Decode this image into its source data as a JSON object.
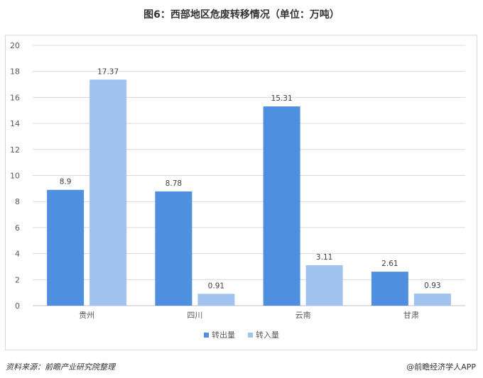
{
  "title": "图6：西部地区危废转移情况（单位：万吨）",
  "chart_data": {
    "type": "bar",
    "categories": [
      "贵州",
      "四川",
      "云南",
      "甘肃"
    ],
    "series": [
      {
        "name": "转出量",
        "values": [
          8.9,
          8.78,
          15.31,
          2.61
        ],
        "color": "#4e8fe0"
      },
      {
        "name": "转入量",
        "values": [
          17.37,
          0.91,
          3.11,
          0.93
        ],
        "color": "#a0c4ef"
      }
    ],
    "value_labels": [
      [
        "8.9",
        "8.78",
        "15.31",
        "2.61"
      ],
      [
        "17.37",
        "0.91",
        "3.11",
        "0.93"
      ]
    ],
    "ylim": [
      0,
      20
    ],
    "yticks": [
      "0",
      "2",
      "4",
      "6",
      "8",
      "10",
      "12",
      "14",
      "16",
      "18",
      "20"
    ],
    "grid": true,
    "legend_position": "bottom"
  },
  "legend": {
    "outflow": "转出量",
    "inflow": "转入量",
    "outflow_color": "#4e8fe0",
    "inflow_color": "#a0c4ef"
  },
  "footer": {
    "source": "资料来源：前瞻产业研究院整理",
    "brand": "@前瞻经济学人APP"
  }
}
